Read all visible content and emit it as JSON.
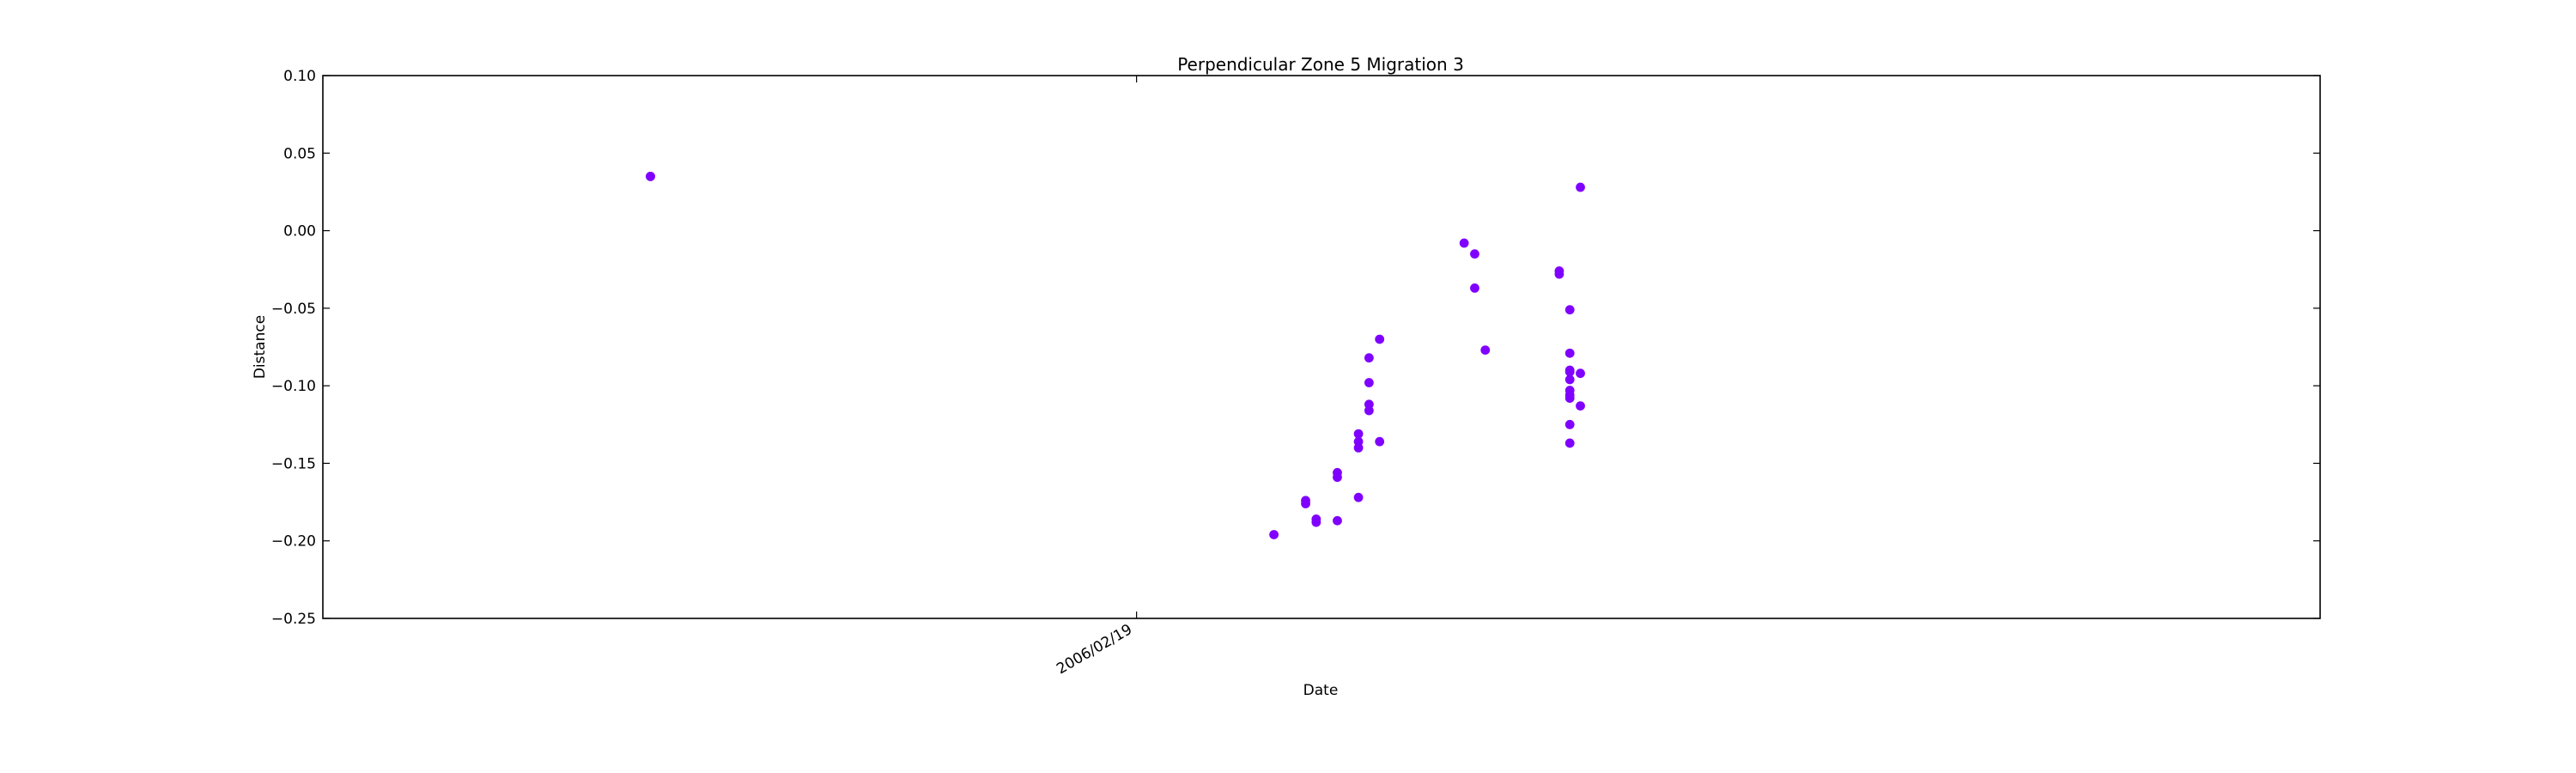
{
  "chart_data": {
    "type": "scatter",
    "title": "Perpendicular Zone 5 Migration 3",
    "xlabel": "Date",
    "ylabel": "Distance",
    "ylim": [
      -0.25,
      0.1
    ],
    "yticks": [
      -0.25,
      -0.2,
      -0.15,
      -0.1,
      -0.05,
      0.0,
      0.05,
      0.1
    ],
    "ytick_labels": [
      "−0.25",
      "−0.20",
      "−0.15",
      "−0.10",
      "−0.05",
      "0.00",
      "0.05",
      "0.10"
    ],
    "xlim": [
      "2005/12/04",
      "2006/06/11"
    ],
    "xticks": [
      "2006/02/19"
    ],
    "xtick_labels": [
      "2006/02/19"
    ],
    "grid": false,
    "marker_color": "#8000ff",
    "points": [
      {
        "x": "2006/01/04",
        "y": 0.035
      },
      {
        "x": "2006/01/04",
        "y": 0.035
      },
      {
        "x": "2006/03/04",
        "y": -0.196
      },
      {
        "x": "2006/03/07",
        "y": -0.174
      },
      {
        "x": "2006/03/07",
        "y": -0.176
      },
      {
        "x": "2006/03/08",
        "y": -0.186
      },
      {
        "x": "2006/03/08",
        "y": -0.188
      },
      {
        "x": "2006/03/10",
        "y": -0.156
      },
      {
        "x": "2006/03/10",
        "y": -0.159
      },
      {
        "x": "2006/03/10",
        "y": -0.187
      },
      {
        "x": "2006/03/12",
        "y": -0.131
      },
      {
        "x": "2006/03/12",
        "y": -0.136
      },
      {
        "x": "2006/03/12",
        "y": -0.14
      },
      {
        "x": "2006/03/12",
        "y": -0.172
      },
      {
        "x": "2006/03/13",
        "y": -0.098
      },
      {
        "x": "2006/03/13",
        "y": -0.112
      },
      {
        "x": "2006/03/13",
        "y": -0.116
      },
      {
        "x": "2006/03/13",
        "y": -0.082
      },
      {
        "x": "2006/03/14",
        "y": -0.07
      },
      {
        "x": "2006/03/14",
        "y": -0.136
      },
      {
        "x": "2006/03/22",
        "y": -0.008
      },
      {
        "x": "2006/03/23",
        "y": -0.015
      },
      {
        "x": "2006/03/23",
        "y": -0.037
      },
      {
        "x": "2006/03/24",
        "y": -0.077
      },
      {
        "x": "2006/03/31",
        "y": -0.026
      },
      {
        "x": "2006/03/31",
        "y": -0.028
      },
      {
        "x": "2006/04/01",
        "y": -0.051
      },
      {
        "x": "2006/04/01",
        "y": -0.079
      },
      {
        "x": "2006/04/01",
        "y": -0.09
      },
      {
        "x": "2006/04/01",
        "y": -0.096
      },
      {
        "x": "2006/04/01",
        "y": -0.103
      },
      {
        "x": "2006/04/01",
        "y": -0.106
      },
      {
        "x": "2006/04/01",
        "y": -0.108
      },
      {
        "x": "2006/04/01",
        "y": -0.125
      },
      {
        "x": "2006/04/01",
        "y": -0.137
      },
      {
        "x": "2006/04/01",
        "y": -0.091
      },
      {
        "x": "2006/04/02",
        "y": -0.092
      },
      {
        "x": "2006/04/02",
        "y": -0.113
      },
      {
        "x": "2006/04/02",
        "y": 0.028
      }
    ]
  }
}
